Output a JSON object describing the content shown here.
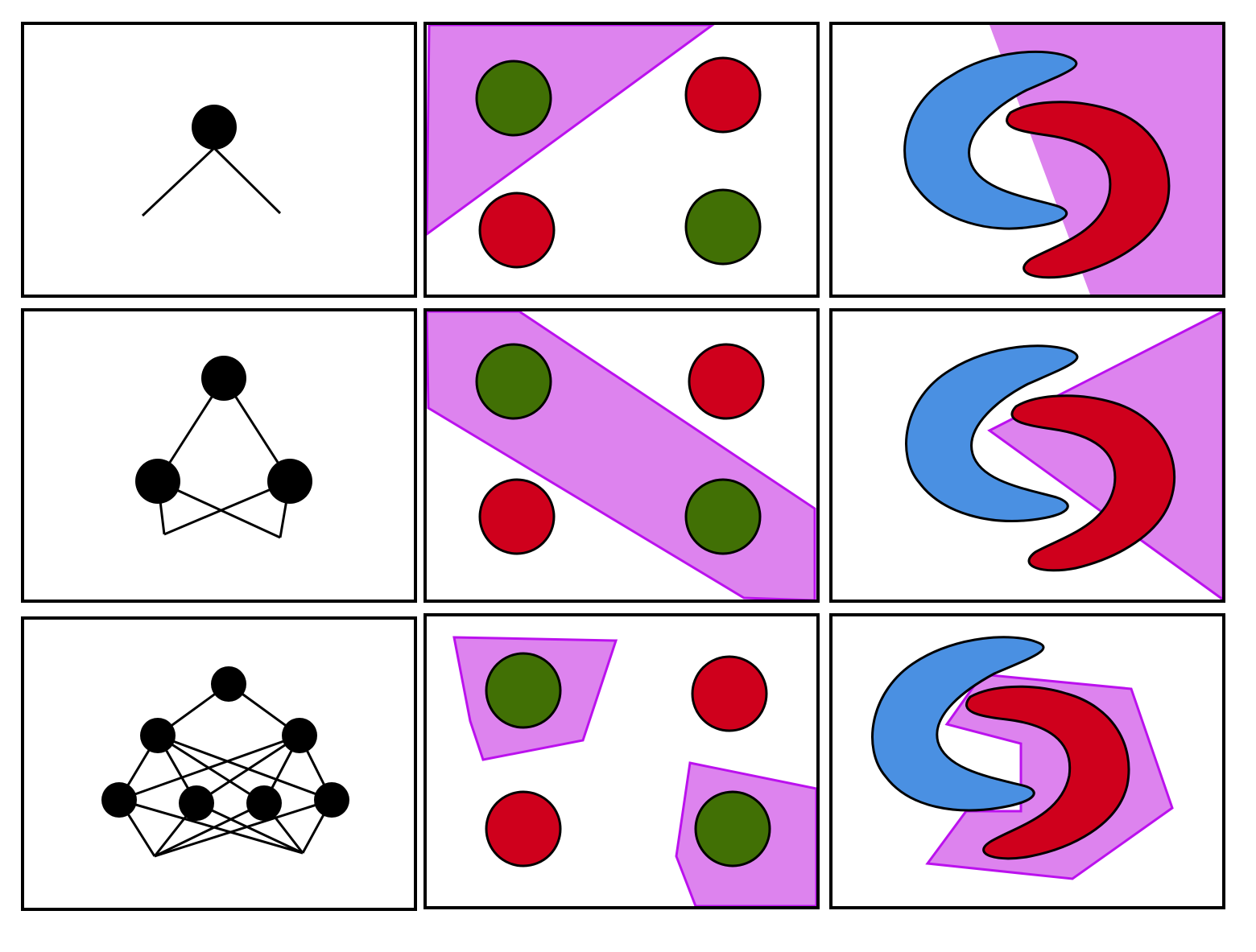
{
  "figure": {
    "rows": [
      {
        "network": "single-neuron",
        "xor_regions": 1,
        "moons_regions": 1
      },
      {
        "network": "one-hidden-layer",
        "xor_regions": 1,
        "moons_regions": 1
      },
      {
        "network": "two-hidden-layers",
        "xor_regions": 2,
        "moons_regions": 1
      }
    ],
    "network_layers": [
      [
        1
      ],
      [
        1,
        2
      ],
      [
        1,
        2,
        4
      ]
    ],
    "xor_points": [
      "green",
      "red",
      "red",
      "green"
    ],
    "moon_classes": [
      "blue",
      "red"
    ]
  },
  "colors": {
    "region_fill": "#dd83ee",
    "region_stroke": "#bb11ee",
    "green": "#417005",
    "red": "#cf001c",
    "blue": "#4a90e2",
    "node": "#000000",
    "frame": "#000000"
  }
}
